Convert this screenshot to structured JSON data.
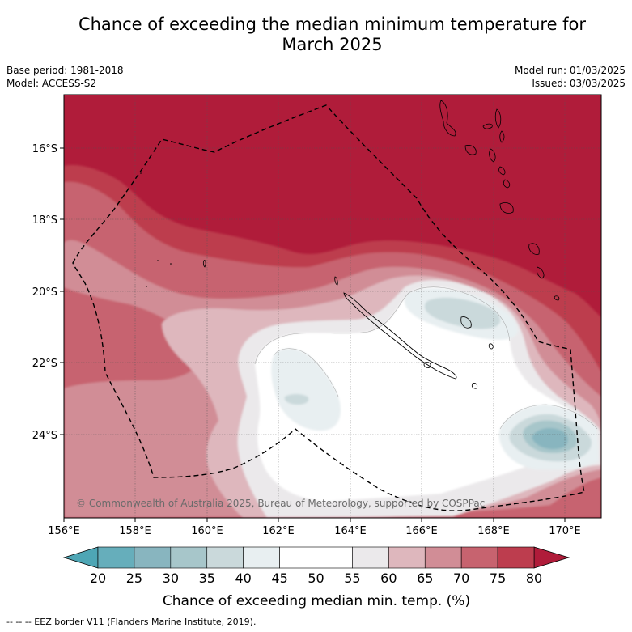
{
  "title_line1": "Chance of exceeding the median minimum temperature for",
  "title_line2": "March 2025",
  "base_period": "Base period: 1981-2018",
  "model": "Model: ACCESS-S2",
  "model_run": "Model run: 01/03/2025",
  "issued": "Issued: 03/03/2025",
  "copyright": "© Commonwealth of Australia 2025, Bureau of Meteorology, supported by COSPPac",
  "lat_labels": [
    "16°S",
    "18°S",
    "20°S",
    "22°S",
    "24°S"
  ],
  "lon_labels": [
    "156°E",
    "158°E",
    "160°E",
    "162°E",
    "164°E",
    "166°E",
    "168°E",
    "170°E"
  ],
  "colorbar": {
    "ticks": [
      "20",
      "25",
      "30",
      "35",
      "40",
      "45",
      "50",
      "55",
      "60",
      "65",
      "70",
      "75",
      "80"
    ],
    "colors": [
      "#66aebb",
      "#88b5bf",
      "#a7c6ca",
      "#cad9db",
      "#e8eff1",
      "#ffffff",
      "#ffffff",
      "#ebe9eb",
      "#deb7bd",
      "#d18d96",
      "#c7636f",
      "#bd3d4e"
    ],
    "under_color": "#4ea6b5",
    "over_color": "#b01c3a",
    "label": "Chance of exceeding median min. temp. (%)"
  },
  "footer": "-- -- -- EEZ border V11 (Flanders Marine Institute, 2019)."
}
